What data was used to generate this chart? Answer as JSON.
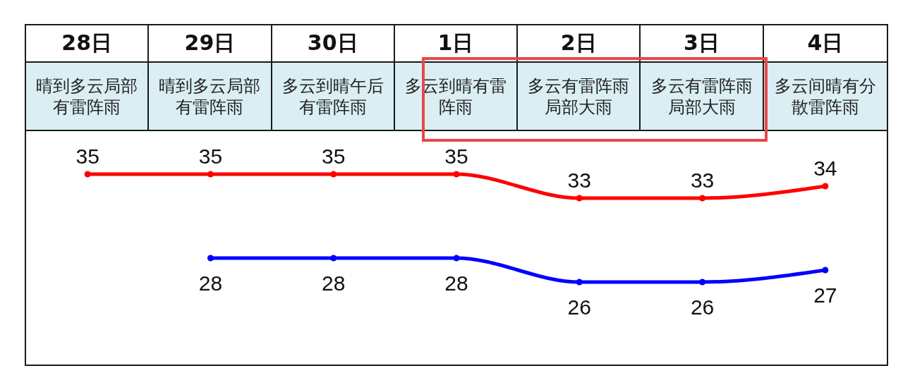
{
  "chart_data": {
    "type": "line",
    "categories": [
      "28日",
      "29日",
      "30日",
      "1日",
      "2日",
      "3日",
      "4日"
    ],
    "series": [
      {
        "color": "#ff0000",
        "values": [
          35,
          35,
          35,
          35,
          33,
          33,
          34
        ]
      },
      {
        "color": "#0000ff",
        "values": [
          null,
          28,
          28,
          28,
          26,
          26,
          27
        ]
      }
    ],
    "marker": "circle",
    "data_labels": true,
    "annotations": [
      "晴到多云局部有雷阵雨",
      "晴到多云局部有雷阵雨",
      "多云到晴午后有雷阵雨",
      "多云到晴有雷阵雨",
      "多云有雷阵雨局部大雨",
      "多云有雷阵雨局部大雨",
      "多云间晴有分散雷阵雨"
    ]
  }
}
